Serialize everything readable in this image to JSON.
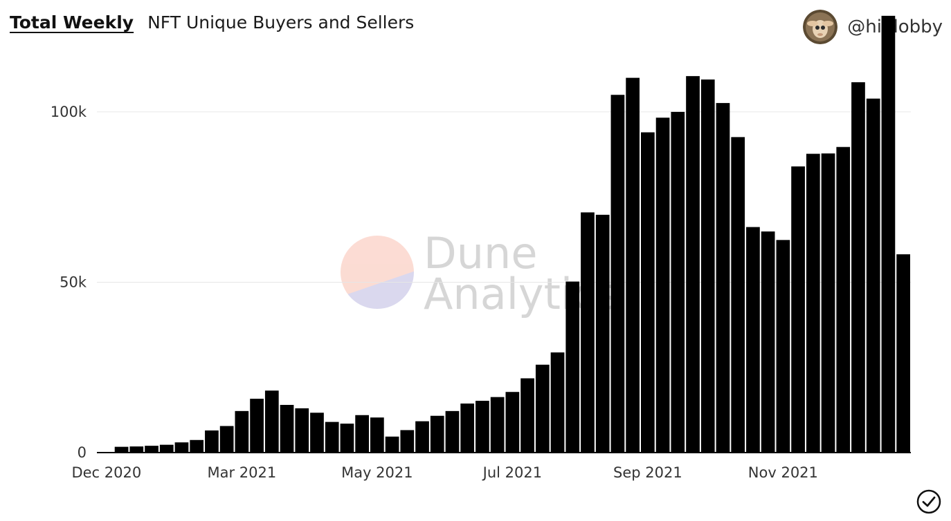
{
  "header": {
    "tab_label": "Total Weekly",
    "title": "NFT Unique Buyers and Sellers"
  },
  "user": {
    "handle": "@hildobby",
    "avatar_icon": "avatar-portrait"
  },
  "watermark": {
    "line1": "Dune",
    "line2": "Analytics"
  },
  "colors": {
    "bar": "#000000",
    "grid": "#e6e6e6",
    "watermark_top": "#fbd6cc",
    "watermark_bottom": "#d4d2ec"
  },
  "status_icon": "check-circle-icon",
  "chart_data": {
    "type": "bar",
    "x_tick_labels": [
      "Dec 2020",
      "Mar 2021",
      "May 2021",
      "Jul 2021",
      "Sep 2021",
      "Nov 2021"
    ],
    "x_tick_bar_index": [
      0,
      9,
      18,
      27,
      36,
      45
    ],
    "y_tick_labels": [
      "0",
      "50k",
      "100k"
    ],
    "y_tick_values": [
      0,
      50000,
      100000
    ],
    "ylim": [
      0,
      130000
    ],
    "grid": true,
    "values": [
      200,
      1700,
      1800,
      2000,
      2300,
      3000,
      3700,
      6500,
      7800,
      12200,
      15800,
      18200,
      14000,
      13000,
      11700,
      9000,
      8500,
      11000,
      10300,
      4700,
      6600,
      9200,
      10800,
      12200,
      14400,
      15200,
      16300,
      17800,
      21800,
      25800,
      29400,
      50200,
      70500,
      69800,
      105000,
      110000,
      94000,
      98300,
      100000,
      110500,
      109500,
      102600,
      92600,
      66200,
      64900,
      62400,
      84000,
      87700,
      87800,
      89700,
      108700,
      103900,
      128200,
      58200
    ]
  }
}
